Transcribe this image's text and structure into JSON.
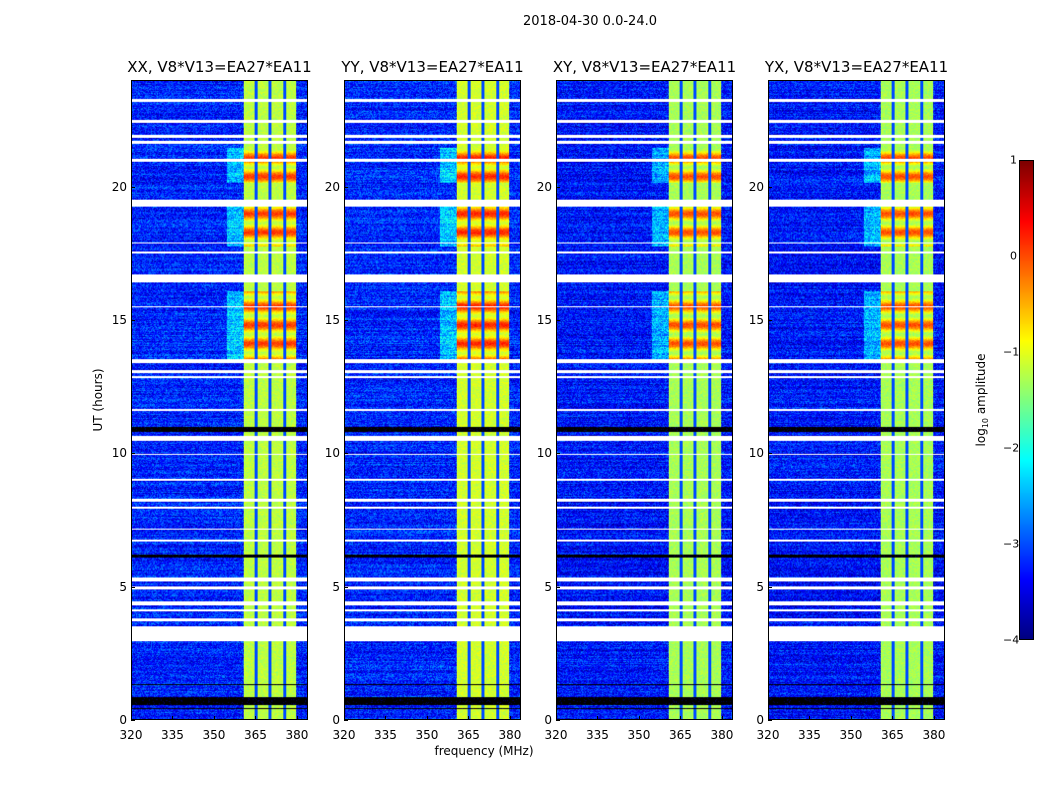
{
  "suptitle": "2018-04-30 0.0-24.0",
  "chart_data": {
    "type": "heatmap",
    "colormap": "jet",
    "xlabel": "frequency (MHz)",
    "ylabel": "UT (hours)",
    "xlim": [
      320,
      384
    ],
    "ylim": [
      0,
      24
    ],
    "xticks": [
      "320",
      "335",
      "350",
      "365",
      "380"
    ],
    "yticks": [
      "0",
      "5",
      "10",
      "15",
      "20"
    ],
    "colorbar": {
      "label_prefix": "log",
      "label_sub": "10",
      "label_suffix": " amplitude",
      "range": [
        -4,
        1
      ],
      "ticks": [
        "1",
        "0",
        "−1",
        "−2",
        "−3",
        "−4"
      ]
    },
    "panels": [
      {
        "title": "XX, V8*V13=EA27*EA11",
        "band_level": -1.2,
        "peak_level": 0.1,
        "background_level": -3.2
      },
      {
        "title": "YY, V8*V13=EA27*EA11",
        "band_level": -1.1,
        "peak_level": 0.2,
        "background_level": -3.2
      },
      {
        "title": "XY, V8*V13=EA27*EA11",
        "band_level": -1.3,
        "peak_level": 0.0,
        "background_level": -3.3
      },
      {
        "title": "YX, V8*V13=EA27*EA11",
        "band_level": -1.3,
        "peak_level": 0.0,
        "background_level": -3.3
      }
    ],
    "bright_band_mhz": [
      360.7,
      380
    ],
    "band_gaps_mhz": [
      365.2,
      370.3,
      375.6
    ],
    "high_activity_hours": [
      [
        13.5,
        16.1
      ],
      [
        17.8,
        19.3
      ],
      [
        20.2,
        21.5
      ]
    ],
    "flagged_hours_white": [
      [
        23.25,
        23.35
      ],
      [
        22.45,
        22.55
      ],
      [
        21.9,
        22.0
      ],
      [
        21.65,
        21.75
      ],
      [
        21.0,
        21.1
      ],
      [
        19.3,
        19.55
      ],
      [
        17.9,
        17.95
      ],
      [
        17.55,
        17.6
      ],
      [
        16.45,
        16.75
      ],
      [
        15.5,
        15.55
      ],
      [
        13.4,
        13.55
      ],
      [
        13.05,
        13.15
      ],
      [
        12.85,
        12.9
      ],
      [
        11.6,
        11.7
      ],
      [
        10.5,
        10.65
      ],
      [
        9.95,
        10.0
      ],
      [
        9.0,
        9.05
      ],
      [
        8.2,
        8.3
      ],
      [
        7.95,
        8.0
      ],
      [
        7.15,
        7.2
      ],
      [
        6.7,
        6.75
      ],
      [
        5.2,
        5.35
      ],
      [
        4.9,
        5.0
      ],
      [
        4.3,
        4.45
      ],
      [
        4.05,
        4.15
      ],
      [
        3.7,
        3.8
      ],
      [
        3.05,
        3.5
      ],
      [
        2.95,
        3.05
      ]
    ],
    "flagged_hours_black": [
      [
        10.8,
        11.0
      ],
      [
        6.1,
        6.2
      ],
      [
        0.55,
        0.85
      ],
      [
        0.4,
        0.45
      ],
      [
        1.3,
        1.35
      ]
    ]
  }
}
